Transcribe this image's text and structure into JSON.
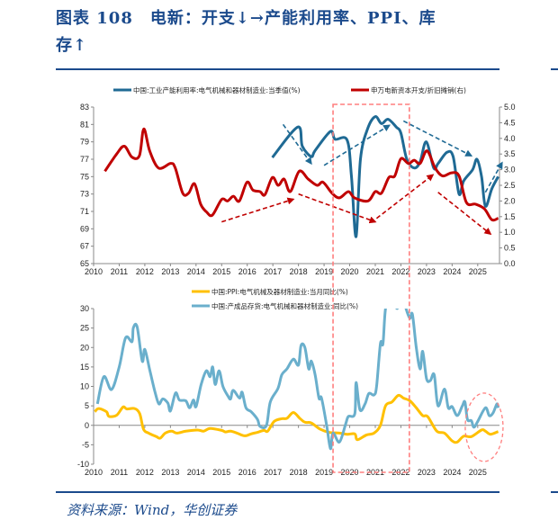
{
  "header": {
    "title_line1": "图表 108　电新：开支↓→产能利用率、PPI、库",
    "title_line2": "存↑"
  },
  "footer": {
    "source": "资料来源：Wind，华创证券"
  },
  "colors": {
    "capacity": "#1f6a94",
    "capex": "#c00000",
    "ppi": "#ffc000",
    "inventory": "#6aafcc",
    "highlight": "#ff7f7f",
    "title": "#1b4a8c"
  },
  "chart_data": [
    {
      "type": "line",
      "x_ticks": [
        "2010",
        "2011",
        "2012",
        "2013",
        "2014",
        "2015",
        "2016",
        "2017",
        "2018",
        "2019",
        "2020",
        "2021",
        "2022",
        "2023",
        "2024",
        "2025"
      ],
      "xlim": [
        2010,
        2025.85
      ],
      "ylim": [
        65,
        83
      ],
      "y_ticks": [
        "65",
        "67",
        "69",
        "71",
        "73",
        "75",
        "77",
        "79",
        "81",
        "83"
      ],
      "y2lim": [
        0,
        5
      ],
      "y2_ticks": [
        "0.0",
        "0.5",
        "1.0",
        "1.5",
        "2.0",
        "2.5",
        "3.0",
        "3.5",
        "4.0",
        "4.5",
        "5.0"
      ],
      "grid": false,
      "legend": "top",
      "series": [
        {
          "name": "中国:工业产能利用率:电气机械和器材制造业:当季值(%)",
          "axis": "left",
          "color": "#1f6a94",
          "points": [
            [
              2016.98,
              77.2
            ],
            [
              2017.97,
              80.7
            ],
            [
              2018.15,
              78.5
            ],
            [
              2018.5,
              77.3
            ],
            [
              2018.65,
              78
            ],
            [
              2019.25,
              80.2
            ],
            [
              2019.43,
              79.3
            ],
            [
              2019.9,
              79.2
            ],
            [
              2020.07,
              75
            ],
            [
              2020.25,
              68.1
            ],
            [
              2020.42,
              77
            ],
            [
              2020.7,
              80.5
            ],
            [
              2021.0,
              81.9
            ],
            [
              2021.24,
              81.1
            ],
            [
              2021.5,
              81.6
            ],
            [
              2021.82,
              80.7
            ],
            [
              2022.0,
              80
            ],
            [
              2022.23,
              77
            ],
            [
              2022.52,
              76
            ],
            [
              2022.75,
              76.7
            ],
            [
              2022.99,
              79
            ],
            [
              2023.28,
              76
            ],
            [
              2023.45,
              76.5
            ],
            [
              2023.8,
              77.8
            ],
            [
              2024.04,
              77.3
            ],
            [
              2024.27,
              73
            ],
            [
              2024.45,
              74.5
            ],
            [
              2024.8,
              75.8
            ],
            [
              2024.97,
              77
            ],
            [
              2025.15,
              75
            ],
            [
              2025.3,
              71.6
            ],
            [
              2025.55,
              73.6
            ],
            [
              2025.8,
              75
            ]
          ]
        },
        {
          "name": "申万电新资本开支/折旧摊销(右)",
          "axis": "right",
          "color": "#c00000",
          "points": [
            [
              2010.44,
              2.95
            ],
            [
              2010.9,
              3.5
            ],
            [
              2011.2,
              3.75
            ],
            [
              2011.5,
              3.4
            ],
            [
              2011.79,
              3.45
            ],
            [
              2011.96,
              4.3
            ],
            [
              2012.19,
              3.6
            ],
            [
              2012.54,
              3.05
            ],
            [
              2013.01,
              3.2
            ],
            [
              2013.19,
              3.05
            ],
            [
              2013.48,
              2.25
            ],
            [
              2013.71,
              2.25
            ],
            [
              2013.94,
              2.55
            ],
            [
              2014.18,
              1.9
            ],
            [
              2014.41,
              1.65
            ],
            [
              2014.64,
              1.55
            ],
            [
              2015.0,
              2.05
            ],
            [
              2015.23,
              2.0
            ],
            [
              2015.46,
              2.15
            ],
            [
              2015.69,
              2.0
            ],
            [
              2015.99,
              2.6
            ],
            [
              2016.22,
              2.35
            ],
            [
              2016.5,
              2.3
            ],
            [
              2016.69,
              2.2
            ],
            [
              2016.98,
              2.75
            ],
            [
              2017.21,
              2.5
            ],
            [
              2017.44,
              2.7
            ],
            [
              2017.68,
              2.3
            ],
            [
              2018.03,
              2.95
            ],
            [
              2018.38,
              2.7
            ],
            [
              2018.73,
              2.5
            ],
            [
              2018.96,
              2.6
            ],
            [
              2019.31,
              2.25
            ],
            [
              2019.6,
              2.1
            ],
            [
              2019.95,
              2.3
            ],
            [
              2020.19,
              2.1
            ],
            [
              2020.71,
              2.0
            ],
            [
              2021.0,
              2.3
            ],
            [
              2021.24,
              2.25
            ],
            [
              2021.53,
              2.75
            ],
            [
              2021.76,
              2.8
            ],
            [
              2022.0,
              3.35
            ],
            [
              2022.29,
              3.2
            ],
            [
              2022.52,
              3.3
            ],
            [
              2022.75,
              3.2
            ],
            [
              2023.02,
              3.6
            ],
            [
              2023.34,
              3.05
            ],
            [
              2023.63,
              2.8
            ],
            [
              2023.98,
              2.9
            ],
            [
              2024.27,
              2.8
            ],
            [
              2024.56,
              1.95
            ],
            [
              2024.91,
              1.9
            ],
            [
              2025.26,
              1.75
            ],
            [
              2025.55,
              1.4
            ],
            [
              2025.8,
              1.45
            ]
          ]
        }
      ]
    },
    {
      "type": "line",
      "x_ticks": [
        "2010",
        "2011",
        "2012",
        "2013",
        "2014",
        "2015",
        "2016",
        "2017",
        "2018",
        "2019",
        "2020",
        "2021",
        "2022",
        "2023",
        "2024",
        "2025"
      ],
      "xlim": [
        2010,
        2025.85
      ],
      "ylim": [
        -10,
        30
      ],
      "y_ticks": [
        "-10",
        "-5",
        "0",
        "5",
        "10",
        "15",
        "20",
        "25",
        "30"
      ],
      "grid": false,
      "legend": "top",
      "series": [
        {
          "name": "中国:PPI:电气机械及器材制造业:当月同比(%)",
          "color": "#ffc000",
          "points": [
            [
              2010.05,
              3.5
            ],
            [
              2010.2,
              4.3
            ],
            [
              2010.5,
              3.5
            ],
            [
              2010.6,
              2.3
            ],
            [
              2010.9,
              2.6
            ],
            [
              2011.15,
              4.7
            ],
            [
              2011.3,
              4.2
            ],
            [
              2011.6,
              4.3
            ],
            [
              2011.8,
              3
            ],
            [
              2011.95,
              -1
            ],
            [
              2012.15,
              -2
            ],
            [
              2012.45,
              -2.9
            ],
            [
              2012.6,
              -3.3
            ],
            [
              2012.8,
              -2
            ],
            [
              2013.05,
              -1.5
            ],
            [
              2013.25,
              -2
            ],
            [
              2013.6,
              -1.5
            ],
            [
              2014.05,
              -1.2
            ],
            [
              2014.3,
              -1.5
            ],
            [
              2014.55,
              -0.8
            ],
            [
              2015.0,
              -1.3
            ],
            [
              2015.15,
              -1.7
            ],
            [
              2015.35,
              -1.5
            ],
            [
              2015.6,
              -2
            ],
            [
              2015.9,
              -2.7
            ],
            [
              2016.15,
              -2.2
            ],
            [
              2016.4,
              -1.8
            ],
            [
              2016.65,
              -1.3
            ],
            [
              2016.8,
              -1.5
            ],
            [
              2017.05,
              1
            ],
            [
              2017.35,
              1.7
            ],
            [
              2017.55,
              1.8
            ],
            [
              2017.8,
              3.3
            ],
            [
              2018.05,
              1.8
            ],
            [
              2018.25,
              0.8
            ],
            [
              2018.5,
              0.6
            ],
            [
              2018.85,
              -1
            ],
            [
              2019.2,
              -1.8
            ],
            [
              2019.6,
              -2
            ],
            [
              2019.9,
              -2.3
            ],
            [
              2020.2,
              -2.2
            ],
            [
              2020.3,
              -3.7
            ],
            [
              2020.65,
              -2.5
            ],
            [
              2020.95,
              -2
            ],
            [
              2021.2,
              0
            ],
            [
              2021.4,
              5
            ],
            [
              2021.65,
              6
            ],
            [
              2021.9,
              7.7
            ],
            [
              2022.1,
              7
            ],
            [
              2022.35,
              6.3
            ],
            [
              2022.6,
              4.5
            ],
            [
              2022.85,
              2.5
            ],
            [
              2023.05,
              2.2
            ],
            [
              2023.4,
              -1.5
            ],
            [
              2023.7,
              -2
            ],
            [
              2024.0,
              -4
            ],
            [
              2024.2,
              -4.3
            ],
            [
              2024.45,
              -2.8
            ],
            [
              2024.75,
              -2.9
            ],
            [
              2025.15,
              -1.2
            ],
            [
              2025.3,
              -1.5
            ],
            [
              2025.5,
              -2.3
            ],
            [
              2025.8,
              -1.6
            ]
          ]
        },
        {
          "name": "中国:产成品存货:电气机械和器材制造业:同比(%)",
          "color": "#6aafcc",
          "points": [
            [
              2010.15,
              5.5
            ],
            [
              2010.4,
              12.5
            ],
            [
              2010.7,
              9.2
            ],
            [
              2011.0,
              15
            ],
            [
              2011.25,
              22.5
            ],
            [
              2011.5,
              21.5
            ],
            [
              2011.55,
              25
            ],
            [
              2011.7,
              25.3
            ],
            [
              2011.9,
              16.5
            ],
            [
              2012.0,
              19.5
            ],
            [
              2012.2,
              14
            ],
            [
              2012.4,
              8.5
            ],
            [
              2012.55,
              5.5
            ],
            [
              2012.7,
              6.8
            ],
            [
              2012.9,
              5.7
            ],
            [
              2013.0,
              3.7
            ],
            [
              2013.2,
              8.3
            ],
            [
              2013.35,
              6.5
            ],
            [
              2013.6,
              6.3
            ],
            [
              2013.75,
              4.5
            ],
            [
              2013.9,
              6.5
            ],
            [
              2014.0,
              4.8
            ],
            [
              2014.2,
              10.5
            ],
            [
              2014.4,
              14
            ],
            [
              2014.55,
              12.5
            ],
            [
              2014.65,
              15
            ],
            [
              2014.75,
              10.5
            ],
            [
              2014.9,
              14
            ],
            [
              2015.05,
              10
            ],
            [
              2015.25,
              7.5
            ],
            [
              2015.35,
              6.8
            ],
            [
              2015.45,
              9
            ],
            [
              2015.7,
              7
            ],
            [
              2015.8,
              8.5
            ],
            [
              2015.95,
              4.5
            ],
            [
              2016.15,
              3.5
            ],
            [
              2016.4,
              1.5
            ],
            [
              2016.5,
              -0.3
            ],
            [
              2016.75,
              0
            ],
            [
              2016.9,
              6
            ],
            [
              2017.2,
              9.5
            ],
            [
              2017.35,
              13
            ],
            [
              2017.55,
              14.5
            ],
            [
              2017.8,
              17
            ],
            [
              2018.0,
              15.5
            ],
            [
              2018.1,
              20.5
            ],
            [
              2018.25,
              20
            ],
            [
              2018.4,
              14.5
            ],
            [
              2018.5,
              16.5
            ],
            [
              2018.65,
              13
            ],
            [
              2018.8,
              7
            ],
            [
              2018.9,
              7
            ],
            [
              2019.1,
              0
            ],
            [
              2019.25,
              -6
            ],
            [
              2019.35,
              -2
            ],
            [
              2019.6,
              -4.3
            ],
            [
              2019.85,
              0.5
            ],
            [
              2019.95,
              2.3
            ],
            [
              2020.2,
              3
            ],
            [
              2020.25,
              11
            ],
            [
              2020.4,
              4
            ],
            [
              2020.6,
              5.5
            ],
            [
              2020.75,
              8.2
            ],
            [
              2020.95,
              7.8
            ],
            [
              2021.05,
              10
            ],
            [
              2021.2,
              21
            ],
            [
              2021.3,
              21
            ],
            [
              2021.4,
              30
            ],
            [
              2021.6,
              34
            ],
            [
              2021.85,
              30
            ],
            [
              2022.05,
              34
            ],
            [
              2022.2,
              30
            ],
            [
              2022.35,
              27.5
            ],
            [
              2022.45,
              28.5
            ],
            [
              2022.6,
              20
            ],
            [
              2022.75,
              14.5
            ],
            [
              2022.85,
              19
            ],
            [
              2023.0,
              12
            ],
            [
              2023.15,
              11.5
            ],
            [
              2023.3,
              13
            ],
            [
              2023.45,
              5
            ],
            [
              2023.7,
              9.3
            ],
            [
              2023.85,
              4.5
            ],
            [
              2024.0,
              4.8
            ],
            [
              2024.2,
              2.5
            ],
            [
              2024.4,
              5
            ],
            [
              2024.5,
              6
            ],
            [
              2024.6,
              1.5
            ],
            [
              2024.75,
              1.2
            ],
            [
              2024.85,
              -0.5
            ],
            [
              2025.0,
              1
            ],
            [
              2025.3,
              4.5
            ],
            [
              2025.45,
              2.5
            ],
            [
              2025.6,
              3.2
            ],
            [
              2025.75,
              5.5
            ],
            [
              2025.8,
              4.5
            ]
          ]
        }
      ]
    }
  ]
}
